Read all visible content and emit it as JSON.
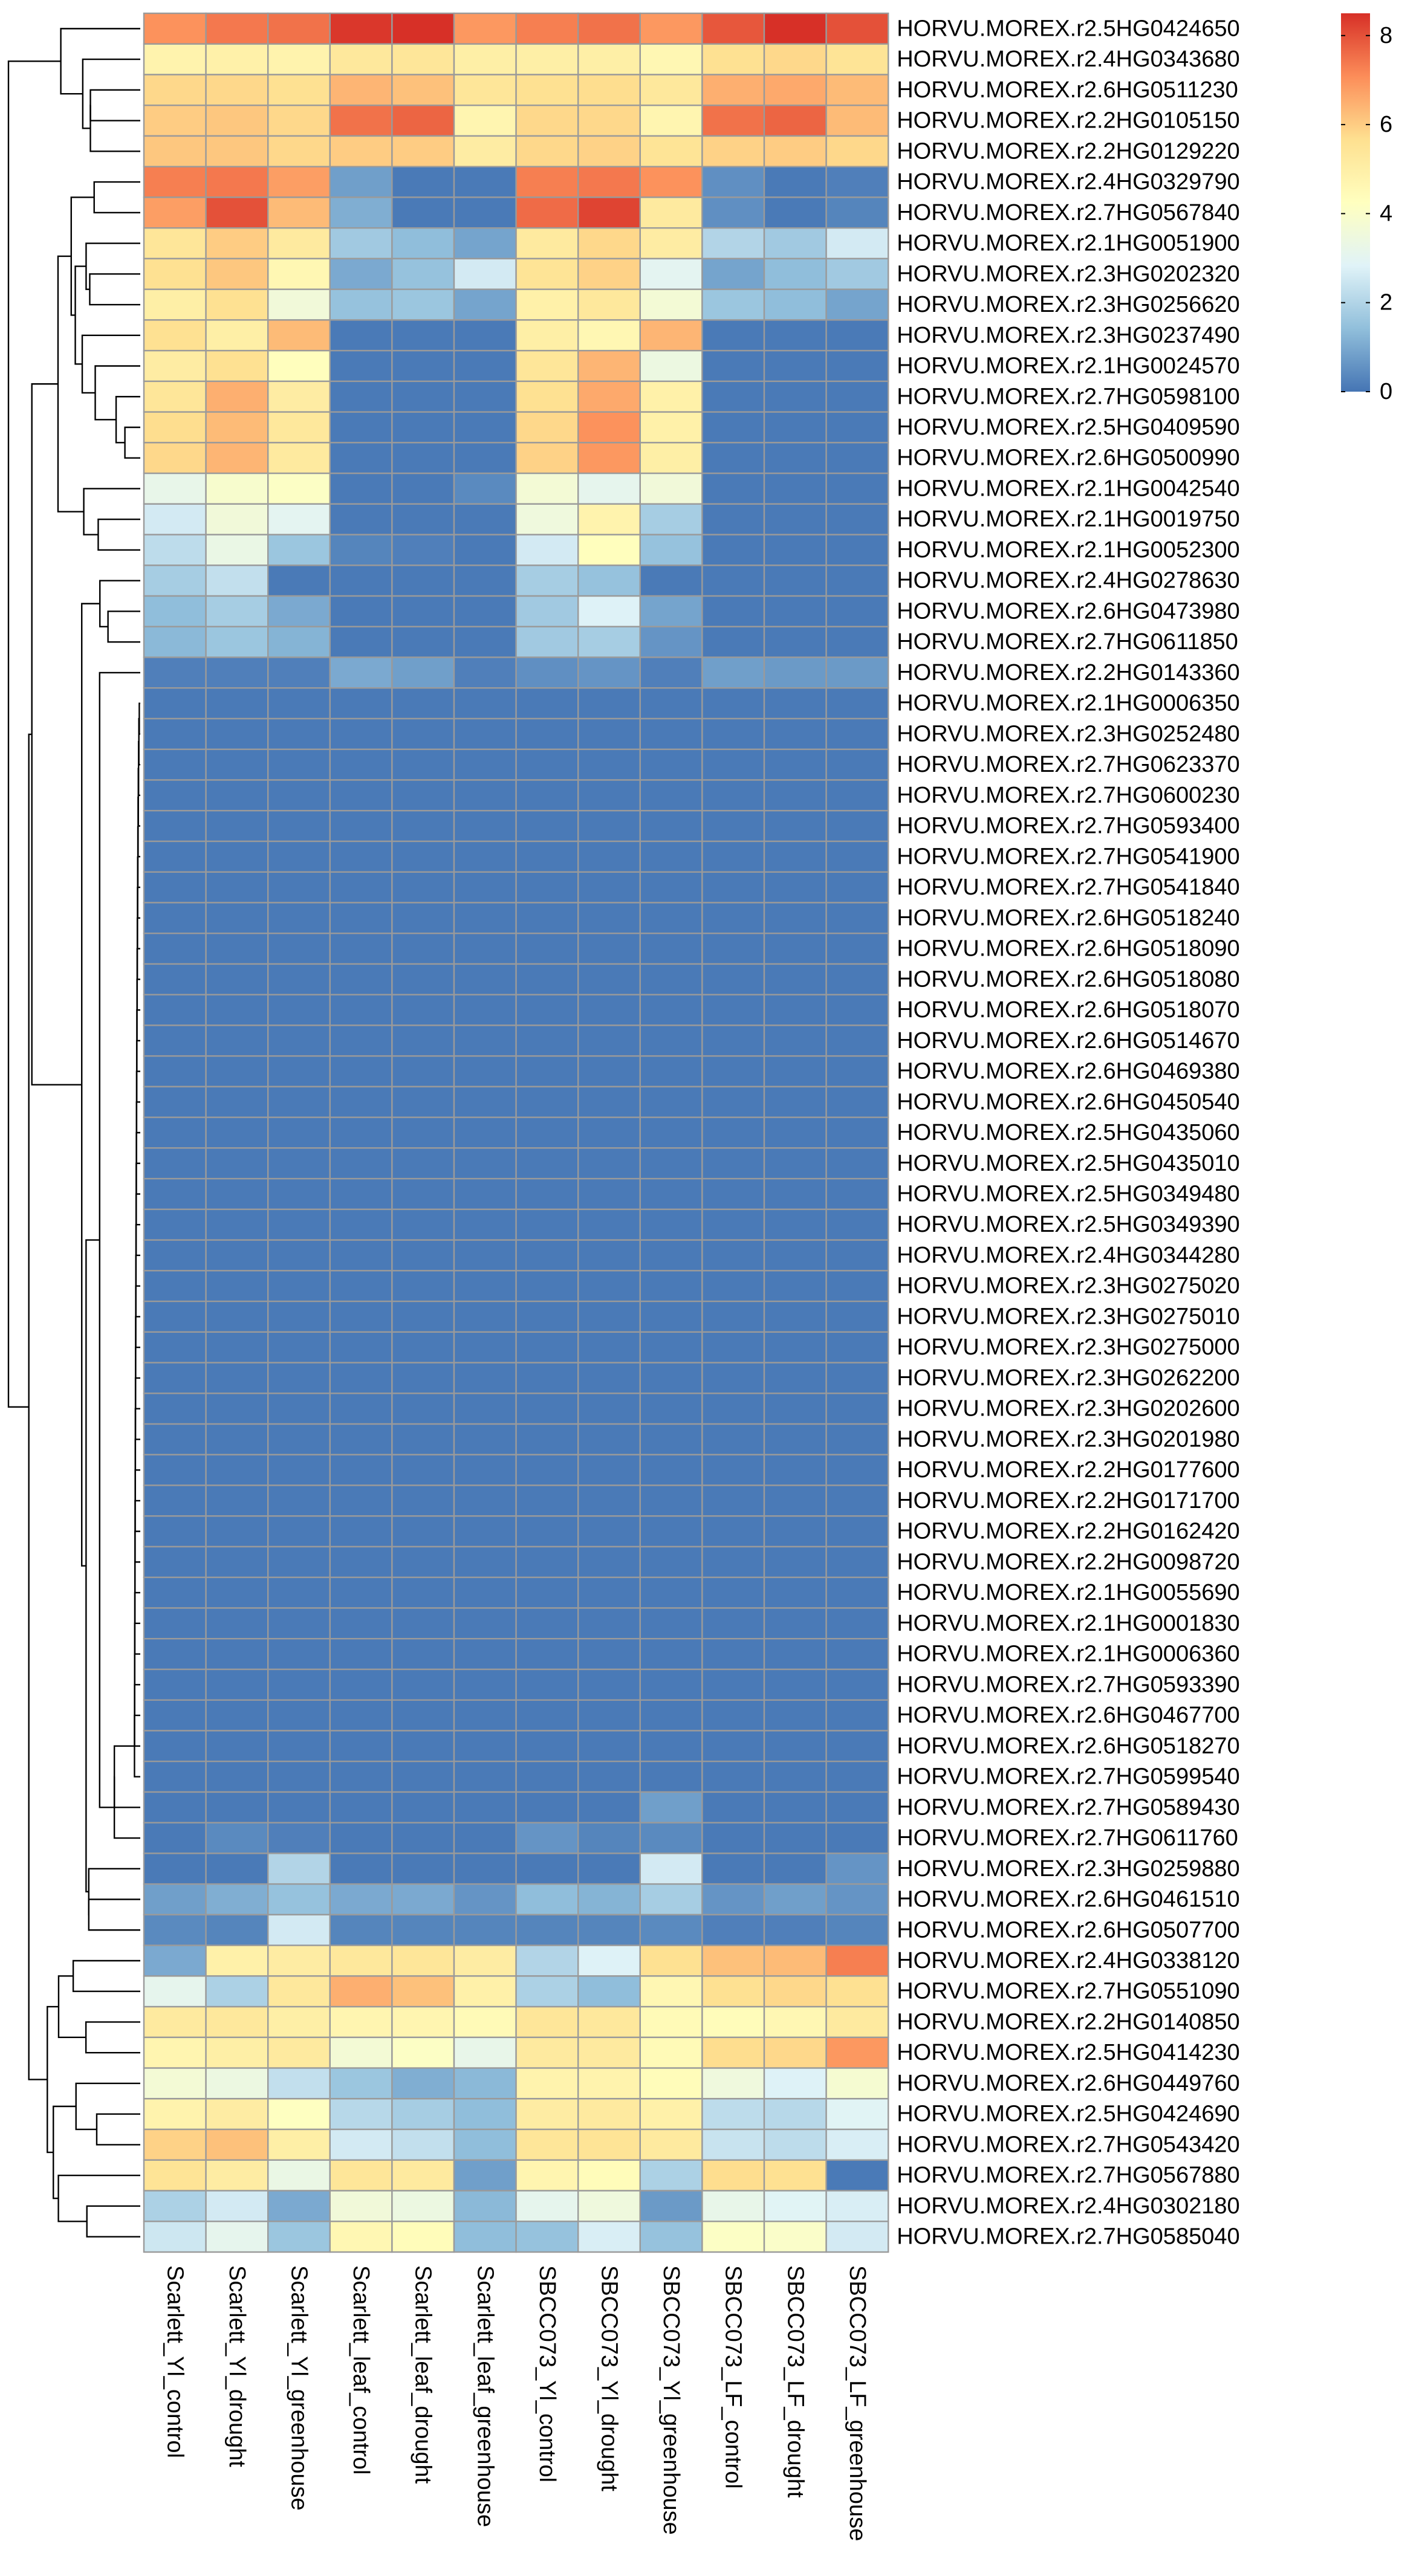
{
  "chart_data": {
    "type": "heatmap",
    "title": "",
    "color_scale": {
      "min": 0,
      "max": 8.5,
      "ticks": [
        "0",
        "2",
        "4",
        "6",
        "8"
      ],
      "colors": [
        "#4575b4",
        "#91bfdb",
        "#e0f3f8",
        "#ffffbf",
        "#fee090",
        "#fc8d59",
        "#d73027"
      ]
    },
    "columns": [
      "Scarlett_Yl_control",
      "Scarlett_Yl_drought",
      "Scarlett_Yl_greenhouse",
      "Scarlett_leaf_control",
      "Scarlett_leaf_drought",
      "Scarlett_leaf_greenhouse",
      "SBCC073_Yl_control",
      "SBCC073_Yl_drought",
      "SBCC073_Yl_greenhouse",
      "SBCC073_LF_control",
      "SBCC073_LF_drought",
      "SBCC073_LF_greenhouse"
    ],
    "rows": [
      "HORVU.MOREX.r2.5HG0424650",
      "HORVU.MOREX.r2.4HG0343680",
      "HORVU.MOREX.r2.6HG0511230",
      "HORVU.MOREX.r2.2HG0105150",
      "HORVU.MOREX.r2.2HG0129220",
      "HORVU.MOREX.r2.4HG0329790",
      "HORVU.MOREX.r2.7HG0567840",
      "HORVU.MOREX.r2.1HG0051900",
      "HORVU.MOREX.r2.3HG0202320",
      "HORVU.MOREX.r2.3HG0256620",
      "HORVU.MOREX.r2.3HG0237490",
      "HORVU.MOREX.r2.1HG0024570",
      "HORVU.MOREX.r2.7HG0598100",
      "HORVU.MOREX.r2.5HG0409590",
      "HORVU.MOREX.r2.6HG0500990",
      "HORVU.MOREX.r2.1HG0042540",
      "HORVU.MOREX.r2.1HG0019750",
      "HORVU.MOREX.r2.1HG0052300",
      "HORVU.MOREX.r2.4HG0278630",
      "HORVU.MOREX.r2.6HG0473980",
      "HORVU.MOREX.r2.7HG0611850",
      "HORVU.MOREX.r2.2HG0143360",
      "HORVU.MOREX.r2.1HG0006350",
      "HORVU.MOREX.r2.3HG0252480",
      "HORVU.MOREX.r2.7HG0623370",
      "HORVU.MOREX.r2.7HG0600230",
      "HORVU.MOREX.r2.7HG0593400",
      "HORVU.MOREX.r2.7HG0541900",
      "HORVU.MOREX.r2.7HG0541840",
      "HORVU.MOREX.r2.6HG0518240",
      "HORVU.MOREX.r2.6HG0518090",
      "HORVU.MOREX.r2.6HG0518080",
      "HORVU.MOREX.r2.6HG0518070",
      "HORVU.MOREX.r2.6HG0514670",
      "HORVU.MOREX.r2.6HG0469380",
      "HORVU.MOREX.r2.6HG0450540",
      "HORVU.MOREX.r2.5HG0435060",
      "HORVU.MOREX.r2.5HG0435010",
      "HORVU.MOREX.r2.5HG0349480",
      "HORVU.MOREX.r2.5HG0349390",
      "HORVU.MOREX.r2.4HG0344280",
      "HORVU.MOREX.r2.3HG0275020",
      "HORVU.MOREX.r2.3HG0275010",
      "HORVU.MOREX.r2.3HG0275000",
      "HORVU.MOREX.r2.3HG0262200",
      "HORVU.MOREX.r2.3HG0202600",
      "HORVU.MOREX.r2.3HG0201980",
      "HORVU.MOREX.r2.2HG0177600",
      "HORVU.MOREX.r2.2HG0171700",
      "HORVU.MOREX.r2.2HG0162420",
      "HORVU.MOREX.r2.2HG0098720",
      "HORVU.MOREX.r2.1HG0055690",
      "HORVU.MOREX.r2.1HG0001830",
      "HORVU.MOREX.r2.1HG0006360",
      "HORVU.MOREX.r2.7HG0593390",
      "HORVU.MOREX.r2.6HG0467700",
      "HORVU.MOREX.r2.6HG0518270",
      "HORVU.MOREX.r2.7HG0599540",
      "HORVU.MOREX.r2.7HG0589430",
      "HORVU.MOREX.r2.7HG0611760",
      "HORVU.MOREX.r2.3HG0259880",
      "HORVU.MOREX.r2.6HG0461510",
      "HORVU.MOREX.r2.6HG0507700",
      "HORVU.MOREX.r2.4HG0338120",
      "HORVU.MOREX.r2.7HG0551090",
      "HORVU.MOREX.r2.2HG0140850",
      "HORVU.MOREX.r2.5HG0414230",
      "HORVU.MOREX.r2.6HG0449760",
      "HORVU.MOREX.r2.5HG0424690",
      "HORVU.MOREX.r2.7HG0543420",
      "HORVU.MOREX.r2.7HG0567880",
      "HORVU.MOREX.r2.4HG0302180",
      "HORVU.MOREX.r2.7HG0585040"
    ],
    "values": [
      [
        7.0,
        7.4,
        7.5,
        8.4,
        8.5,
        6.9,
        7.3,
        7.5,
        6.9,
        7.9,
        8.5,
        8.0
      ],
      [
        4.8,
        4.9,
        4.8,
        5.3,
        5.4,
        5.0,
        5.0,
        5.0,
        4.6,
        5.6,
        5.8,
        5.5
      ],
      [
        5.8,
        5.8,
        5.6,
        6.4,
        6.2,
        5.4,
        5.6,
        5.7,
        5.3,
        6.5,
        6.6,
        6.3
      ],
      [
        6.0,
        6.1,
        5.8,
        7.5,
        7.7,
        4.7,
        5.8,
        5.8,
        4.7,
        7.5,
        7.7,
        6.3
      ],
      [
        6.1,
        6.1,
        5.8,
        6.0,
        6.0,
        5.1,
        5.8,
        5.9,
        5.5,
        5.9,
        6.0,
        5.8
      ],
      [
        7.3,
        7.4,
        6.8,
        0.8,
        0.1,
        0.1,
        7.3,
        7.4,
        7.0,
        0.5,
        0.1,
        0.2
      ],
      [
        6.8,
        8.0,
        6.3,
        1.1,
        0.1,
        0.1,
        7.6,
        8.2,
        5.2,
        0.5,
        0.1,
        0.3
      ],
      [
        5.4,
        6.0,
        5.2,
        1.7,
        1.4,
        0.9,
        5.2,
        5.8,
        5.1,
        2.0,
        1.7,
        2.6
      ],
      [
        5.6,
        6.1,
        4.6,
        1.0,
        1.5,
        2.6,
        5.5,
        5.9,
        3.0,
        0.9,
        1.4,
        1.7
      ],
      [
        5.0,
        5.6,
        3.6,
        1.5,
        1.6,
        0.9,
        4.9,
        5.3,
        3.7,
        1.6,
        1.4,
        0.9
      ],
      [
        5.6,
        5.0,
        6.3,
        0.1,
        0.1,
        0.1,
        5.0,
        4.6,
        6.4,
        0.1,
        0.1,
        0.1
      ],
      [
        5.1,
        5.6,
        4.3,
        0.1,
        0.1,
        0.1,
        5.4,
        6.4,
        3.4,
        0.1,
        0.1,
        0.1
      ],
      [
        5.4,
        6.5,
        5.1,
        0.1,
        0.1,
        0.1,
        5.6,
        6.6,
        4.9,
        0.1,
        0.1,
        0.1
      ],
      [
        5.7,
        6.3,
        5.3,
        0.1,
        0.1,
        0.1,
        5.8,
        7.0,
        4.9,
        0.1,
        0.1,
        0.1
      ],
      [
        5.8,
        6.4,
        5.2,
        0.1,
        0.1,
        0.1,
        5.9,
        6.9,
        5.0,
        0.1,
        0.1,
        0.1
      ],
      [
        3.2,
        3.9,
        4.1,
        0.1,
        0.1,
        0.4,
        3.7,
        3.1,
        3.6,
        0.1,
        0.1,
        0.1
      ],
      [
        2.6,
        3.6,
        3.0,
        0.1,
        0.1,
        0.1,
        3.5,
        4.8,
        1.8,
        0.1,
        0.1,
        0.1
      ],
      [
        2.2,
        3.3,
        1.6,
        0.3,
        0.2,
        0.1,
        2.6,
        4.3,
        1.5,
        0.1,
        0.1,
        0.1
      ],
      [
        1.8,
        2.3,
        0.1,
        0.1,
        0.1,
        0.1,
        1.8,
        1.5,
        0.1,
        0.1,
        0.1,
        0.1
      ],
      [
        1.4,
        1.8,
        1.0,
        0.1,
        0.1,
        0.1,
        1.7,
        2.8,
        0.9,
        0.1,
        0.1,
        0.1
      ],
      [
        1.3,
        1.6,
        1.2,
        0.1,
        0.1,
        0.1,
        1.7,
        1.8,
        0.6,
        0.1,
        0.1,
        0.1
      ],
      [
        0.2,
        0.2,
        0.2,
        1.0,
        0.8,
        0.2,
        0.5,
        0.6,
        0.2,
        0.8,
        0.7,
        0.7
      ],
      [
        0.1,
        0.1,
        0.1,
        0.1,
        0.1,
        0.1,
        0.1,
        0.1,
        0.1,
        0.1,
        0.1,
        0.1
      ],
      [
        0.1,
        0.1,
        0.1,
        0.1,
        0.1,
        0.1,
        0.1,
        0.1,
        0.1,
        0.1,
        0.1,
        0.1
      ],
      [
        0.1,
        0.1,
        0.1,
        0.1,
        0.1,
        0.1,
        0.1,
        0.1,
        0.1,
        0.1,
        0.1,
        0.1
      ],
      [
        0.1,
        0.1,
        0.1,
        0.1,
        0.1,
        0.1,
        0.1,
        0.1,
        0.1,
        0.1,
        0.1,
        0.1
      ],
      [
        0.1,
        0.1,
        0.1,
        0.1,
        0.1,
        0.1,
        0.1,
        0.1,
        0.1,
        0.1,
        0.1,
        0.1
      ],
      [
        0.1,
        0.1,
        0.1,
        0.1,
        0.1,
        0.1,
        0.1,
        0.1,
        0.1,
        0.1,
        0.1,
        0.1
      ],
      [
        0.1,
        0.1,
        0.1,
        0.1,
        0.1,
        0.1,
        0.1,
        0.1,
        0.1,
        0.1,
        0.1,
        0.1
      ],
      [
        0.1,
        0.1,
        0.1,
        0.1,
        0.1,
        0.1,
        0.1,
        0.1,
        0.1,
        0.1,
        0.1,
        0.1
      ],
      [
        0.1,
        0.1,
        0.1,
        0.1,
        0.1,
        0.1,
        0.1,
        0.1,
        0.1,
        0.1,
        0.1,
        0.1
      ],
      [
        0.1,
        0.1,
        0.1,
        0.1,
        0.1,
        0.1,
        0.1,
        0.1,
        0.1,
        0.1,
        0.1,
        0.1
      ],
      [
        0.1,
        0.1,
        0.1,
        0.1,
        0.1,
        0.1,
        0.1,
        0.1,
        0.1,
        0.1,
        0.1,
        0.1
      ],
      [
        0.1,
        0.1,
        0.1,
        0.1,
        0.1,
        0.1,
        0.1,
        0.1,
        0.1,
        0.1,
        0.1,
        0.1
      ],
      [
        0.1,
        0.1,
        0.1,
        0.1,
        0.1,
        0.1,
        0.1,
        0.1,
        0.1,
        0.1,
        0.1,
        0.1
      ],
      [
        0.1,
        0.1,
        0.1,
        0.1,
        0.1,
        0.1,
        0.1,
        0.1,
        0.1,
        0.1,
        0.1,
        0.1
      ],
      [
        0.1,
        0.1,
        0.1,
        0.1,
        0.1,
        0.1,
        0.1,
        0.1,
        0.1,
        0.1,
        0.1,
        0.1
      ],
      [
        0.1,
        0.1,
        0.1,
        0.1,
        0.1,
        0.1,
        0.1,
        0.1,
        0.1,
        0.1,
        0.1,
        0.1
      ],
      [
        0.1,
        0.1,
        0.1,
        0.1,
        0.1,
        0.1,
        0.1,
        0.1,
        0.1,
        0.1,
        0.1,
        0.1
      ],
      [
        0.1,
        0.1,
        0.1,
        0.1,
        0.1,
        0.1,
        0.1,
        0.1,
        0.1,
        0.1,
        0.1,
        0.1
      ],
      [
        0.1,
        0.1,
        0.1,
        0.1,
        0.1,
        0.1,
        0.1,
        0.1,
        0.1,
        0.1,
        0.1,
        0.1
      ],
      [
        0.1,
        0.1,
        0.1,
        0.1,
        0.1,
        0.1,
        0.1,
        0.1,
        0.1,
        0.1,
        0.1,
        0.1
      ],
      [
        0.1,
        0.1,
        0.1,
        0.1,
        0.1,
        0.1,
        0.1,
        0.1,
        0.1,
        0.1,
        0.1,
        0.1
      ],
      [
        0.1,
        0.1,
        0.1,
        0.1,
        0.1,
        0.1,
        0.1,
        0.1,
        0.1,
        0.1,
        0.1,
        0.1
      ],
      [
        0.1,
        0.1,
        0.1,
        0.1,
        0.1,
        0.1,
        0.1,
        0.1,
        0.1,
        0.1,
        0.1,
        0.1
      ],
      [
        0.1,
        0.1,
        0.1,
        0.1,
        0.1,
        0.1,
        0.1,
        0.1,
        0.1,
        0.1,
        0.1,
        0.1
      ],
      [
        0.1,
        0.1,
        0.1,
        0.1,
        0.1,
        0.1,
        0.1,
        0.1,
        0.1,
        0.1,
        0.1,
        0.1
      ],
      [
        0.1,
        0.1,
        0.1,
        0.1,
        0.1,
        0.1,
        0.1,
        0.1,
        0.1,
        0.1,
        0.1,
        0.1
      ],
      [
        0.1,
        0.1,
        0.1,
        0.1,
        0.1,
        0.1,
        0.1,
        0.1,
        0.1,
        0.1,
        0.1,
        0.1
      ],
      [
        0.1,
        0.1,
        0.1,
        0.1,
        0.1,
        0.1,
        0.1,
        0.1,
        0.1,
        0.1,
        0.1,
        0.1
      ],
      [
        0.1,
        0.1,
        0.1,
        0.1,
        0.1,
        0.1,
        0.1,
        0.1,
        0.1,
        0.1,
        0.1,
        0.1
      ],
      [
        0.1,
        0.1,
        0.1,
        0.1,
        0.1,
        0.1,
        0.1,
        0.1,
        0.1,
        0.1,
        0.1,
        0.1
      ],
      [
        0.1,
        0.1,
        0.1,
        0.1,
        0.1,
        0.1,
        0.1,
        0.1,
        0.1,
        0.1,
        0.1,
        0.1
      ],
      [
        0.1,
        0.1,
        0.1,
        0.1,
        0.1,
        0.1,
        0.1,
        0.1,
        0.1,
        0.1,
        0.1,
        0.1
      ],
      [
        0.1,
        0.1,
        0.1,
        0.1,
        0.1,
        0.1,
        0.1,
        0.1,
        0.1,
        0.1,
        0.1,
        0.1
      ],
      [
        0.1,
        0.1,
        0.1,
        0.1,
        0.1,
        0.1,
        0.1,
        0.1,
        0.1,
        0.1,
        0.1,
        0.1
      ],
      [
        0.1,
        0.1,
        0.1,
        0.1,
        0.1,
        0.1,
        0.1,
        0.1,
        0.1,
        0.1,
        0.1,
        0.1
      ],
      [
        0.1,
        0.1,
        0.1,
        0.1,
        0.1,
        0.1,
        0.1,
        0.1,
        0.1,
        0.1,
        0.1,
        0.1
      ],
      [
        0.1,
        0.1,
        0.1,
        0.1,
        0.1,
        0.1,
        0.1,
        0.1,
        0.8,
        0.1,
        0.1,
        0.1
      ],
      [
        0.1,
        0.4,
        0.2,
        0.1,
        0.1,
        0.1,
        0.6,
        0.3,
        0.4,
        0.1,
        0.1,
        0.1
      ],
      [
        0.1,
        0.1,
        2.0,
        0.1,
        0.1,
        0.1,
        0.1,
        0.1,
        2.6,
        0.1,
        0.1,
        0.6
      ],
      [
        0.8,
        1.1,
        1.5,
        1.0,
        1.0,
        0.6,
        1.4,
        1.2,
        1.8,
        0.6,
        0.8,
        0.6
      ],
      [
        0.4,
        0.3,
        2.6,
        0.3,
        0.3,
        0.3,
        0.3,
        0.3,
        0.4,
        0.2,
        0.2,
        0.3
      ],
      [
        1.0,
        4.9,
        5.1,
        5.3,
        5.4,
        5.1,
        2.0,
        2.8,
        5.6,
        6.2,
        6.3,
        7.3
      ],
      [
        3.1,
        1.9,
        5.3,
        6.5,
        6.2,
        4.9,
        1.9,
        1.4,
        4.6,
        5.6,
        5.8,
        5.6
      ],
      [
        5.2,
        5.3,
        5.0,
        4.7,
        4.7,
        4.5,
        5.4,
        5.3,
        4.5,
        4.4,
        4.6,
        5.2
      ],
      [
        4.7,
        5.0,
        5.2,
        3.7,
        4.1,
        3.2,
        5.2,
        5.2,
        4.5,
        5.7,
        5.8,
        6.9
      ],
      [
        3.7,
        3.4,
        2.3,
        1.6,
        1.1,
        1.3,
        4.8,
        4.8,
        4.4,
        3.5,
        2.8,
        3.8
      ],
      [
        4.8,
        5.1,
        4.2,
        2.1,
        1.8,
        1.4,
        5.1,
        5.2,
        4.9,
        2.2,
        2.1,
        2.9
      ],
      [
        5.9,
        6.2,
        5.0,
        2.6,
        2.3,
        1.4,
        5.4,
        5.5,
        5.2,
        2.4,
        2.2,
        2.7
      ],
      [
        5.5,
        5.1,
        3.3,
        5.4,
        5.2,
        0.8,
        4.7,
        4.4,
        1.9,
        5.7,
        5.6,
        0.1
      ],
      [
        1.9,
        2.6,
        1.0,
        3.6,
        3.4,
        1.3,
        3.1,
        3.5,
        0.7,
        3.2,
        2.9,
        2.7
      ],
      [
        2.5,
        3.1,
        1.6,
        4.6,
        4.4,
        1.4,
        1.5,
        2.7,
        1.5,
        4.1,
        4.0,
        2.6
      ]
    ]
  }
}
